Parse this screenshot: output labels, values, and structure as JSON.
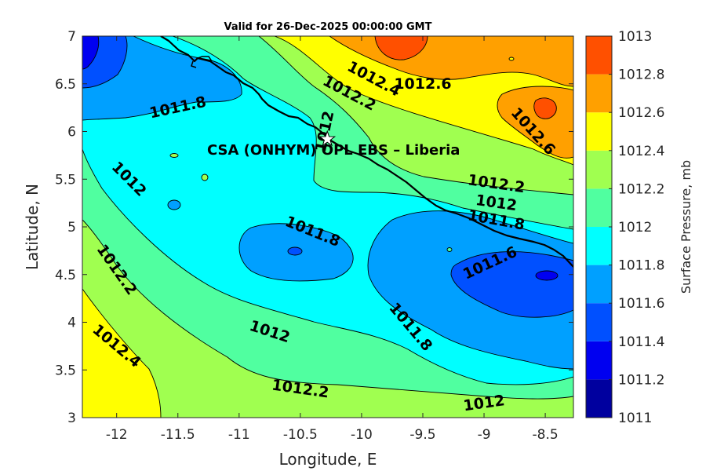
{
  "title": "Valid for 26-Dec-2025 00:00:00 GMT",
  "xlabel": "Longitude, E",
  "ylabel": "Latitude, N",
  "colorbar_label": "Surface Pressure, mb",
  "annotation": {
    "text": "CSA (ONHYM) OPL EBS  – Liberia",
    "marker": "star",
    "lon": -10.28,
    "lat": 5.92
  },
  "chart_data": {
    "type": "heatmap",
    "subtype": "filled-contour-map",
    "xlim": [
      -12.28,
      -8.27
    ],
    "ylim": [
      3,
      7
    ],
    "xticks": [
      -12,
      -11.5,
      -11,
      -10.5,
      -10,
      -9.5,
      -9,
      -8.5
    ],
    "xtick_labels": [
      "-12",
      "-11.5",
      "-11",
      "-10.5",
      "-10",
      "-9.5",
      "-9",
      "-8.5"
    ],
    "yticks": [
      3,
      3.5,
      4,
      4.5,
      5,
      5.5,
      6,
      6.5,
      7
    ],
    "ytick_labels": [
      "3",
      "3.5",
      "4",
      "4.5",
      "5",
      "5.5",
      "6",
      "6.5",
      "7"
    ],
    "colorbar": {
      "min": 1011,
      "max": 1013,
      "step": 0.2,
      "tick_labels": [
        "1011",
        "1011.2",
        "1011.4",
        "1011.6",
        "1011.8",
        "1012",
        "1012.2",
        "1012.4",
        "1012.6",
        "1012.8",
        "1013"
      ],
      "colors": [
        "#00009f",
        "#0000f0",
        "#0050ff",
        "#00a0ff",
        "#00ffff",
        "#50ffa0",
        "#a0ff50",
        "#ffff00",
        "#ffa000",
        "#ff5000",
        "#ff0000"
      ]
    },
    "contour_labels": [
      {
        "text": "1012.4",
        "lon": -9.9,
        "lat": 6.55,
        "rot": 28
      },
      {
        "text": "1012.2",
        "lon": -10.1,
        "lat": 6.4,
        "rot": 28
      },
      {
        "text": "1012.6",
        "lon": -9.5,
        "lat": 6.5,
        "rot": 0
      },
      {
        "text": "1011.8",
        "lon": -11.5,
        "lat": 6.25,
        "rot": -12
      },
      {
        "text": "1012.6",
        "lon": -8.6,
        "lat": 6.0,
        "rot": 48
      },
      {
        "text": "1012",
        "lon": -10.3,
        "lat": 6.0,
        "rot": -78
      },
      {
        "text": "1012",
        "lon": -11.9,
        "lat": 5.5,
        "rot": 45
      },
      {
        "text": "1012.2",
        "lon": -8.9,
        "lat": 5.45,
        "rot": 8
      },
      {
        "text": "1012",
        "lon": -8.9,
        "lat": 5.25,
        "rot": 8
      },
      {
        "text": "1011.8",
        "lon": -8.9,
        "lat": 5.07,
        "rot": 10
      },
      {
        "text": "1011.8",
        "lon": -10.4,
        "lat": 4.95,
        "rot": 22
      },
      {
        "text": "1011.6",
        "lon": -8.95,
        "lat": 4.62,
        "rot": -25
      },
      {
        "text": "1012.2",
        "lon": -12.0,
        "lat": 4.55,
        "rot": 55
      },
      {
        "text": "1012.4",
        "lon": -12.0,
        "lat": 3.75,
        "rot": 40
      },
      {
        "text": "1011.8",
        "lon": -9.6,
        "lat": 3.95,
        "rot": 50
      },
      {
        "text": "1012",
        "lon": -10.75,
        "lat": 3.9,
        "rot": 18
      },
      {
        "text": "1012.2",
        "lon": -10.5,
        "lat": 3.3,
        "rot": 8
      },
      {
        "text": "1012",
        "lon": -9.0,
        "lat": 3.15,
        "rot": -8
      }
    ]
  }
}
